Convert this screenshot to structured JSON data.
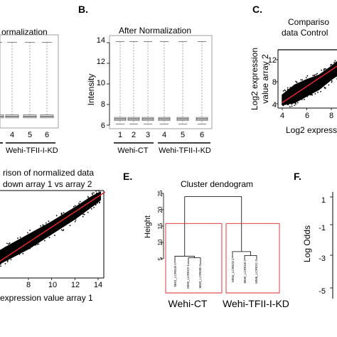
{
  "panels": {
    "a": {
      "title": "ormalization",
      "group_tick_labels": [
        "4",
        "5",
        "6"
      ],
      "group_label": "Wehi-TFII-I-KD"
    },
    "b": {
      "letter": "B.",
      "title": "After Normalization",
      "ylabel": "Intensity",
      "ytick_labels": [
        "6",
        "8",
        "10",
        "12",
        "14"
      ],
      "xtick_labels": [
        "1",
        "2",
        "3",
        "4",
        "5",
        "6"
      ],
      "group_labels": [
        "Wehi-CT",
        "Wehi-TFII-I-KD"
      ]
    },
    "c": {
      "letter": "C.",
      "title_lines": [
        "Compariso",
        "data Control"
      ],
      "ylabel_lines": [
        "Log2 expression",
        "value array 2"
      ],
      "ytick_labels": [
        "4",
        "8",
        "12"
      ],
      "xtick_labels": [
        "4",
        "6",
        "8"
      ],
      "xlabel": "Log2 expressi"
    },
    "d": {
      "title_lines": [
        "rison of normalized data",
        "down array 1 vs array 2"
      ],
      "xtick_labels": [
        "8",
        "10",
        "12",
        "14"
      ],
      "xlabel": "expression value array 1"
    },
    "e": {
      "letter": "E.",
      "title": "Cluster dendogram",
      "ylabel": "Height",
      "ytick_labels": [
        "5",
        "10",
        "15",
        "20",
        "25"
      ],
      "leaf_labels": [
        "MM1_LCR01B-1",
        "MM2_LCR01D-1",
        "MM3_LCR03B-2",
        "MM4_LCR02D-1",
        "MM5_LCR01B-2",
        "MM6_LCR02C-2"
      ],
      "group_labels": [
        "Wehi-CT",
        "Wehi-TFII-I-KD"
      ]
    },
    "f": {
      "letter": "F.",
      "ylabel": "Log Odds",
      "ytick_labels": [
        "1",
        "-1",
        "-3",
        "-5"
      ]
    }
  },
  "colors": {
    "points": "#000000",
    "fit_line": "#d9262b",
    "cut_line": "#d9262b",
    "axis": "#000000",
    "box": "#666666"
  },
  "chart_data": [
    {
      "panel": "A",
      "type": "box",
      "title": "ormalization",
      "categories": [
        "4",
        "5",
        "6"
      ],
      "values_median": [
        6.6,
        6.6,
        6.6
      ],
      "whisker_high": [
        14.1,
        14.1,
        14.1
      ]
    },
    {
      "panel": "B",
      "type": "box",
      "title": "After Normalization",
      "ylabel": "Intensity",
      "categories": [
        "1",
        "2",
        "3",
        "4",
        "5",
        "6"
      ],
      "groups": [
        {
          "name": "Wehi-CT",
          "members": [
            "1",
            "2",
            "3"
          ]
        },
        {
          "name": "Wehi-TFII-I-KD",
          "members": [
            "4",
            "5",
            "6"
          ]
        }
      ],
      "ylim": [
        5.8,
        14.6
      ],
      "q1": [
        6.45,
        6.45,
        6.45,
        6.45,
        6.45,
        6.45
      ],
      "median": [
        6.6,
        6.6,
        6.6,
        6.6,
        6.6,
        6.6
      ],
      "q3": [
        6.75,
        6.75,
        6.75,
        6.75,
        6.75,
        6.75
      ],
      "whisker_low": [
        6.1,
        6.1,
        6.1,
        6.1,
        6.1,
        6.1
      ],
      "whisker_high": [
        14.1,
        14.1,
        14.1,
        14.1,
        14.1,
        14.1
      ]
    },
    {
      "panel": "C",
      "type": "scatter",
      "xlim": [
        3.8,
        9.4
      ],
      "ylim": [
        3.6,
        14.6
      ],
      "cloud_upper": [
        [
          4.0,
          5.6
        ],
        [
          5.0,
          7.4
        ],
        [
          6.0,
          8.4
        ],
        [
          7.0,
          9.2
        ],
        [
          8.0,
          10.8
        ],
        [
          9.0,
          12.6
        ],
        [
          9.4,
          13.6
        ]
      ],
      "cloud_lower": [
        [
          4.0,
          3.8
        ],
        [
          5.0,
          4.2
        ],
        [
          6.0,
          5.4
        ],
        [
          7.0,
          6.6
        ],
        [
          8.0,
          8.4
        ],
        [
          9.0,
          10.0
        ],
        [
          9.4,
          10.9
        ]
      ],
      "fit_line": [
        [
          4.0,
          4.2
        ],
        [
          9.4,
          12.2
        ]
      ]
    },
    {
      "panel": "D",
      "type": "scatter",
      "xlim": [
        4.0,
        14.6
      ],
      "ylim": [
        2.0,
        15.0
      ],
      "cloud_upper": [
        [
          4.0,
          4.8
        ],
        [
          6.0,
          6.8
        ],
        [
          8.0,
          8.6
        ],
        [
          10.0,
          10.4
        ],
        [
          12.0,
          12.4
        ],
        [
          13.5,
          14.0
        ],
        [
          14.2,
          14.6
        ]
      ],
      "cloud_lower": [
        [
          4.0,
          3.2
        ],
        [
          6.0,
          4.9
        ],
        [
          8.0,
          6.6
        ],
        [
          10.0,
          8.7
        ],
        [
          12.0,
          10.8
        ],
        [
          13.5,
          12.6
        ],
        [
          14.2,
          13.5
        ]
      ],
      "fit_line": [
        [
          4.0,
          3.2
        ],
        [
          14.6,
          14.6
        ]
      ]
    },
    {
      "panel": "E",
      "type": "dendrogram",
      "title": "Cluster dendogram",
      "ylabel": "Height",
      "ylim": [
        0,
        27
      ],
      "leaves": [
        "MM1_LCR01B-1",
        "MM2_LCR01D-1",
        "MM3_LCR03B-2",
        "MM4_LCR02D-1",
        "MM5_LCR01B-2",
        "MM6_LCR02C-2"
      ],
      "merges": [
        {
          "left": "MM2_LCR01D-1",
          "right": "MM3_LCR03B-2",
          "height": 5.3
        },
        {
          "left": "MM1_LCR01B-1",
          "right": "merge-1",
          "height": 5.8
        },
        {
          "left": "MM5_LCR01B-2",
          "right": "MM6_LCR02C-2",
          "height": 6.0
        },
        {
          "left": "MM4_LCR02D-1",
          "right": "merge-3",
          "height": 7.2
        },
        {
          "left": "merge-2",
          "right": "merge-4",
          "height": 24.0
        }
      ],
      "cut_height": 15.8
    }
  ]
}
